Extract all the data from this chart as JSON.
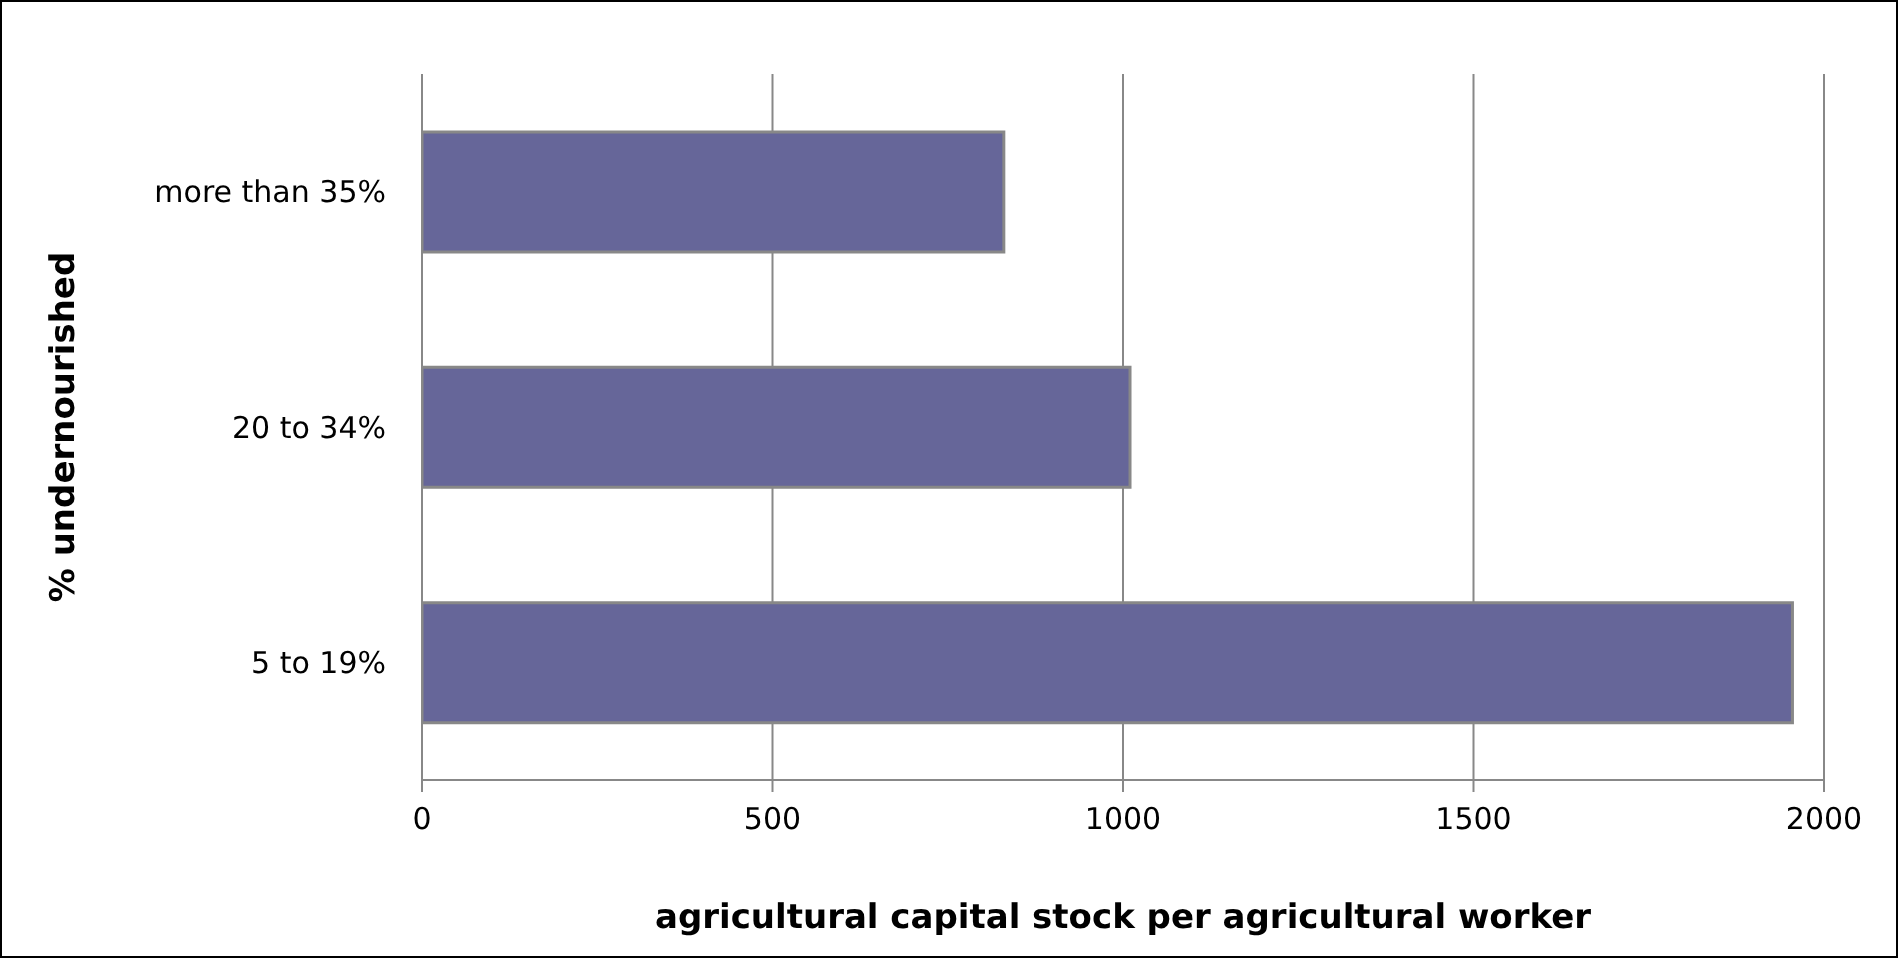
{
  "chart_data": {
    "type": "bar",
    "orientation": "horizontal",
    "categories": [
      "more than 35%",
      "20 to 34%",
      "5 to 19%"
    ],
    "values": [
      830,
      1010,
      1955
    ],
    "color": "#666699",
    "xlim": [
      0,
      2000
    ],
    "xticks": [
      0,
      500,
      1000,
      1500,
      2000
    ],
    "grid": "x",
    "xlabel": "agricultural capital stock  per agricultural worker",
    "ylabel": "% undernourished"
  }
}
